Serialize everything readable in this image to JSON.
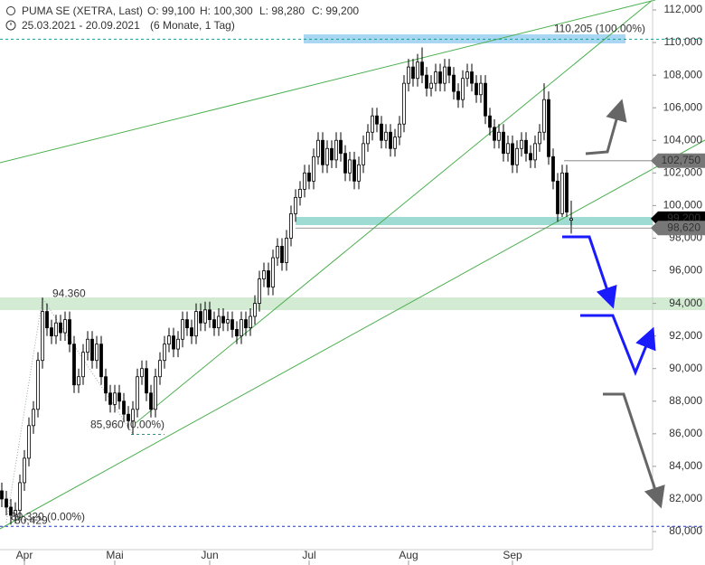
{
  "chart_data": {
    "type": "candlestick",
    "title": "PUMA SE (XETRA, Last)",
    "ohlc_labels": [
      "O: 99,100",
      "H: 100,300",
      "L: 98,280",
      "C: 99,200"
    ],
    "subtitle": "25.03.2021 - 20.09.2021",
    "period": "(6 Monate, 1 Tag)",
    "xlim": [
      -0.4,
      144
    ],
    "xticks": [
      {
        "value": 5,
        "label": "Apr"
      },
      {
        "value": 25,
        "label": "Mai"
      },
      {
        "value": 46,
        "label": "Jun"
      },
      {
        "value": 68,
        "label": "Jul"
      },
      {
        "value": 90,
        "label": "Aug"
      },
      {
        "value": 113,
        "label": "Sep"
      }
    ],
    "ylim": [
      77950,
      112610
    ],
    "yticks": [
      {
        "value": 80000,
        "label": "80,000"
      },
      {
        "value": 82000,
        "label": "82,000"
      },
      {
        "value": 84000,
        "label": "84,000"
      },
      {
        "value": 86000,
        "label": "86,000"
      },
      {
        "value": 88000,
        "label": "88,000"
      },
      {
        "value": 90000,
        "label": "90,000"
      },
      {
        "value": 92000,
        "label": "92,000"
      },
      {
        "value": 94000,
        "label": "94,000"
      },
      {
        "value": 96000,
        "label": "96,000"
      },
      {
        "value": 98000,
        "label": "98,000"
      },
      {
        "value": 100000,
        "label": "100,000"
      },
      {
        "value": 102000,
        "label": "102,000"
      },
      {
        "value": 104000,
        "label": "104,000"
      },
      {
        "value": 106000,
        "label": "106,000"
      },
      {
        "value": 108000,
        "label": "108,000"
      },
      {
        "value": 110000,
        "label": "110,000"
      },
      {
        "value": 112000,
        "label": "112,000"
      }
    ],
    "up_color": "#ffffff",
    "down_color": "#000000",
    "open": [
      82500,
      82000,
      81500,
      81000,
      81300,
      83000,
      84500,
      86500,
      87500,
      90500,
      93500,
      92500,
      92000,
      92800,
      92200,
      93000,
      91500,
      89000,
      89500,
      91000,
      91800,
      90500,
      91500,
      89500,
      88500,
      87800,
      88500,
      88000,
      87200,
      86800,
      87500,
      89500,
      90000,
      88500,
      87500,
      89500,
      90500,
      91500,
      92000,
      91200,
      91800,
      93000,
      92500,
      92000,
      93500,
      92800,
      93600,
      93000,
      92500,
      93200,
      92800,
      93000,
      92400,
      92000,
      93000,
      92500,
      93200,
      94000,
      95500,
      96000,
      95000,
      96800,
      97500,
      96500,
      98000,
      99500,
      100500,
      101000,
      102000,
      101500,
      103000,
      104000,
      102500,
      103500,
      102800,
      104000,
      103200,
      102000,
      102800,
      101500,
      102500,
      103800,
      104500,
      105500,
      105000,
      104000,
      104500,
      103500,
      104200,
      105000,
      107500,
      108500,
      107800,
      108800,
      108000,
      107200,
      107500,
      108200,
      107500,
      108500,
      108000,
      107000,
      106500,
      107800,
      108200,
      107500,
      106800,
      107500,
      105500,
      104800,
      104000,
      104500,
      103200,
      103800,
      102500,
      103500,
      104000,
      103200,
      102800,
      103800,
      104500,
      106500,
      103000,
      101500,
      99500,
      102000,
      99100
    ],
    "high": [
      83000,
      82500,
      82000,
      81800,
      83500,
      85000,
      87000,
      88000,
      91000,
      94360,
      94000,
      93000,
      93300,
      93300,
      93500,
      93500,
      92000,
      90000,
      91500,
      92300,
      92300,
      92000,
      92000,
      90000,
      89000,
      89000,
      89000,
      88500,
      87700,
      88000,
      90000,
      90500,
      90500,
      89000,
      90000,
      91000,
      92000,
      92500,
      92500,
      92300,
      93500,
      93500,
      93000,
      94000,
      94000,
      94100,
      94100,
      93500,
      93700,
      93700,
      93500,
      93500,
      92900,
      93500,
      93500,
      93700,
      94500,
      96000,
      96500,
      96500,
      97300,
      98000,
      98000,
      98500,
      100000,
      101000,
      101500,
      102500,
      102500,
      103500,
      104500,
      104500,
      104000,
      104000,
      104500,
      104500,
      103700,
      103300,
      103300,
      103000,
      104300,
      105000,
      106000,
      106000,
      105500,
      105000,
      105000,
      104700,
      105500,
      108000,
      109000,
      109000,
      109300,
      109700,
      108500,
      108000,
      108700,
      108700,
      109000,
      109000,
      108500,
      107500,
      108300,
      108700,
      108700,
      108000,
      108000,
      108000,
      106000,
      105300,
      105000,
      105000,
      104300,
      104300,
      104000,
      104500,
      104500,
      103700,
      104300,
      105000,
      107500,
      107000,
      103500,
      102000,
      102500,
      102500,
      100300
    ],
    "low": [
      81500,
      81000,
      80429,
      80500,
      80800,
      82500,
      84000,
      86000,
      87000,
      90000,
      92000,
      91500,
      91500,
      91700,
      91700,
      91000,
      88500,
      88500,
      89000,
      90500,
      90000,
      90000,
      89000,
      88000,
      87300,
      87300,
      87500,
      86700,
      86300,
      85960,
      87000,
      89000,
      88000,
      87000,
      87000,
      89000,
      90000,
      91000,
      90700,
      90700,
      91300,
      92000,
      91500,
      91500,
      92300,
      92300,
      92500,
      92000,
      92000,
      92300,
      92300,
      91900,
      91500,
      91500,
      92000,
      92000,
      92700,
      93500,
      95000,
      94500,
      94500,
      96300,
      96000,
      96000,
      97500,
      99000,
      100000,
      100500,
      101000,
      101000,
      102500,
      102000,
      102000,
      102300,
      102300,
      102700,
      101500,
      101500,
      101000,
      101000,
      102000,
      103300,
      104000,
      104500,
      103500,
      103500,
      103000,
      103000,
      103700,
      104500,
      107000,
      107300,
      107300,
      107500,
      106700,
      106700,
      107000,
      107000,
      107000,
      107500,
      106500,
      106000,
      106000,
      107300,
      107000,
      106300,
      106300,
      105000,
      104300,
      103500,
      103500,
      102700,
      102700,
      102000,
      102000,
      103000,
      102700,
      102300,
      102300,
      103300,
      104000,
      102500,
      101000,
      99000,
      99300,
      99300,
      98280
    ],
    "close": [
      82000,
      81500,
      81000,
      81300,
      83000,
      84500,
      86500,
      87500,
      90500,
      93500,
      92500,
      92000,
      92800,
      92200,
      93000,
      91500,
      89000,
      89500,
      91000,
      91800,
      90500,
      91500,
      89500,
      88500,
      87800,
      88500,
      88000,
      87200,
      86800,
      87500,
      89500,
      90000,
      88500,
      87500,
      89500,
      90500,
      91500,
      92000,
      91200,
      91800,
      93000,
      92500,
      92000,
      93500,
      92800,
      93600,
      93000,
      92500,
      93200,
      92800,
      93000,
      92400,
      92000,
      93000,
      92500,
      93200,
      94000,
      95500,
      96000,
      95000,
      96800,
      97500,
      96500,
      98000,
      99500,
      100500,
      101000,
      102000,
      101500,
      103000,
      104000,
      102500,
      103500,
      102800,
      104000,
      103200,
      102000,
      102800,
      101500,
      102500,
      103800,
      104500,
      105500,
      105000,
      104000,
      104500,
      103500,
      104200,
      105000,
      107500,
      108500,
      107800,
      108800,
      108000,
      107200,
      107500,
      108200,
      107500,
      108500,
      108000,
      107000,
      106500,
      107800,
      108200,
      107500,
      106800,
      107500,
      105500,
      104800,
      104000,
      104500,
      103200,
      103800,
      102500,
      103500,
      104000,
      103200,
      102800,
      103800,
      104500,
      106500,
      103000,
      101500,
      99500,
      102000,
      99600,
      99200
    ],
    "levels": [
      {
        "value": 110205,
        "label": "110,205 (100.00%)",
        "color": "#1a9c8c"
      },
      {
        "value": 80320,
        "label": "80,320 (0.00%)",
        "color": "#2236b0"
      }
    ],
    "annotations": [
      {
        "value": 94360,
        "label": "94.360"
      },
      {
        "value": 85960,
        "label": "85,960 (0.00%)"
      },
      {
        "value": 80429,
        "label": "80,429"
      }
    ],
    "price_tags": [
      {
        "value": 102750,
        "label": "102,750",
        "color": "#777777"
      },
      {
        "value": 99200,
        "label": "99,200",
        "color": "#000000"
      },
      {
        "value": 98620,
        "label": "98,620",
        "color": "#777777"
      }
    ]
  }
}
